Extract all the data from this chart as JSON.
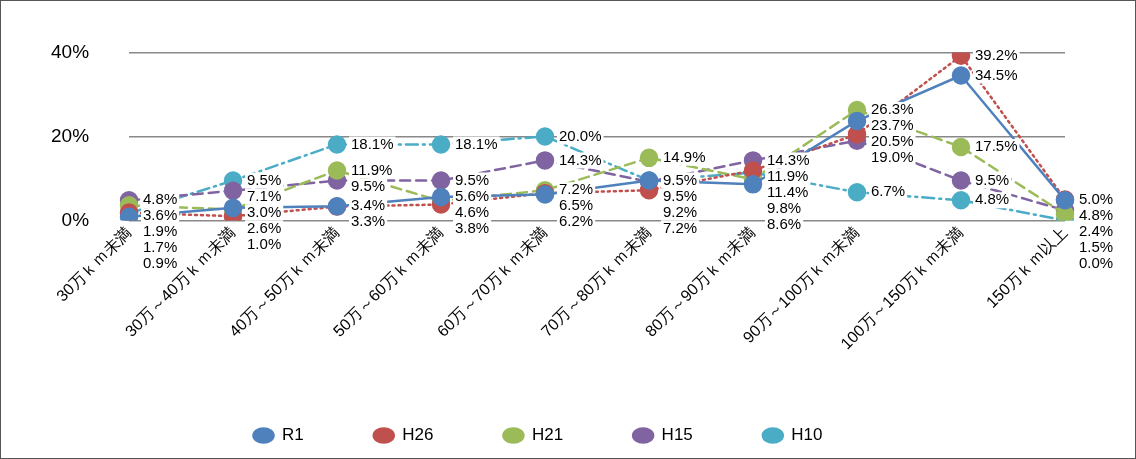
{
  "chart_data": {
    "type": "line",
    "categories": [
      "30万ｋｍ未満",
      "30万～40万ｋｍ未満",
      "40万～50万ｋｍ未満",
      "50万～60万ｋｍ未満",
      "60万～70万ｋｍ未満",
      "70万～80万ｋｍ未満",
      "80万～90万ｋｍ未満",
      "90万～100万ｋｍ未満",
      "100万～150万ｋｍ未満",
      "150万ｋｍ以上"
    ],
    "series": [
      {
        "name": "R1",
        "color": "#4f81bd",
        "line_style": "solid",
        "values": [
          0.9,
          3.0,
          3.4,
          5.6,
          6.2,
          9.5,
          8.6,
          23.7,
          34.5,
          4.8
        ],
        "value_labels": [
          "0.9%",
          "3.0%",
          "3.4%",
          "5.6%",
          "6.2%",
          "9.5%",
          "8.6%",
          "23.7%",
          "34.5%",
          "4.8%"
        ]
      },
      {
        "name": "H26",
        "color": "#c0504d",
        "line_style": "dotted",
        "values": [
          1.9,
          1.0,
          3.3,
          3.8,
          6.5,
          7.2,
          11.9,
          20.5,
          39.2,
          5.0
        ],
        "value_labels": [
          "1.9%",
          "1.0%",
          "3.3%",
          "3.8%",
          "6.5%",
          "7.2%",
          "11.9%",
          "20.5%",
          "39.2%",
          "5.0%"
        ]
      },
      {
        "name": "H21",
        "color": "#9bbb59",
        "line_style": "dashed",
        "values": [
          3.6,
          2.6,
          11.9,
          4.6,
          7.2,
          14.9,
          9.8,
          26.3,
          17.5,
          1.5
        ],
        "value_labels": [
          "3.6%",
          "2.6%",
          "11.9%",
          "4.6%",
          "7.2%",
          "14.9%",
          "9.8%",
          "26.3%",
          "17.5%",
          "1.5%"
        ]
      },
      {
        "name": "H15",
        "color": "#8064a2",
        "line_style": "dashed",
        "values": [
          4.8,
          7.1,
          9.5,
          9.5,
          14.3,
          9.2,
          14.3,
          19.0,
          9.5,
          2.4
        ],
        "value_labels": [
          "4.8%",
          "7.1%",
          "9.5%",
          "9.5%",
          "14.3%",
          "9.2%",
          "14.3%",
          "19.0%",
          "9.5%",
          "2.4%"
        ]
      },
      {
        "name": "H10",
        "color": "#4bacc6",
        "line_style": "dashdot",
        "values": [
          1.7,
          9.5,
          18.1,
          18.1,
          20.0,
          9.5,
          11.4,
          6.7,
          4.8,
          0.0
        ],
        "value_labels": [
          "1.7%",
          "9.5%",
          "18.1%",
          "18.1%",
          "20.0%",
          "9.5%",
          "11.4%",
          "6.7%",
          "4.8%",
          "0.0%"
        ]
      }
    ],
    "ylim": [
      0,
      40
    ],
    "yticks": [
      {
        "value": 0,
        "label": "0%"
      },
      {
        "value": 20,
        "label": "20%"
      },
      {
        "value": 40,
        "label": "40%"
      }
    ],
    "grid": "y",
    "legend": "bottom",
    "marker": "circle"
  }
}
